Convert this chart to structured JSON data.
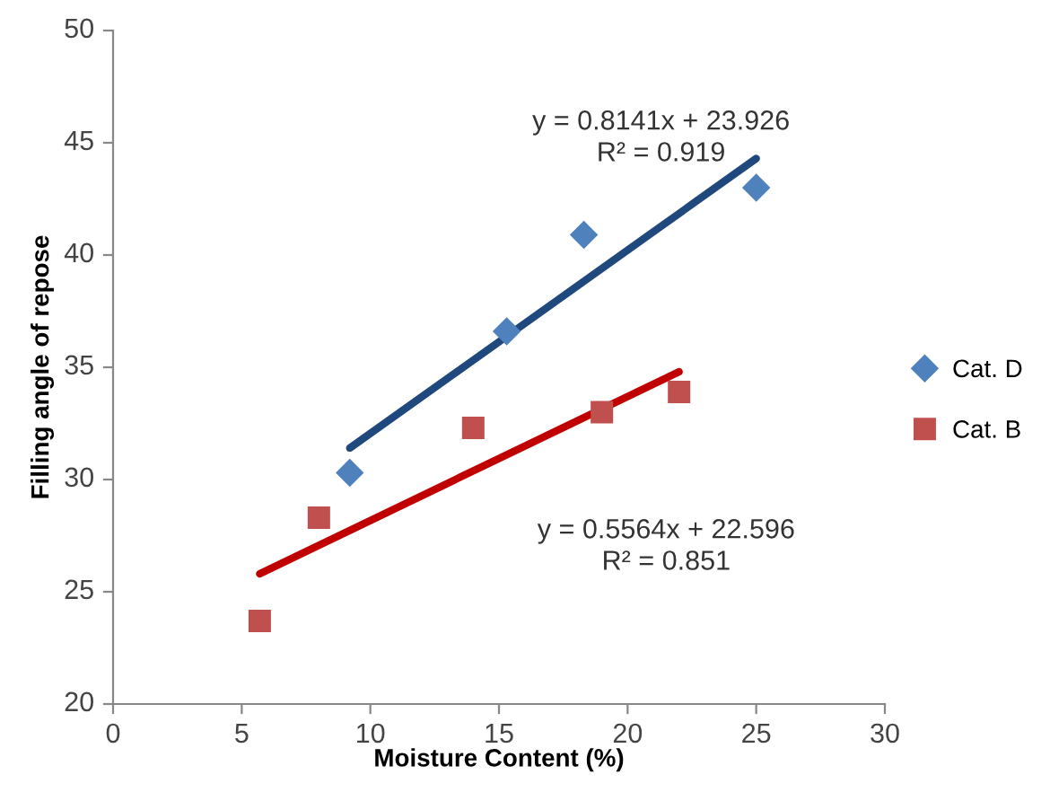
{
  "chart_data": {
    "type": "scatter",
    "xlabel": "Moisture Content (%)",
    "ylabel": "Filling angle of repose",
    "xlim": [
      0,
      30
    ],
    "xticks": [
      0,
      5,
      10,
      15,
      20,
      25,
      30
    ],
    "ylim": [
      20,
      50
    ],
    "yticks": [
      20,
      25,
      30,
      35,
      40,
      45,
      50
    ],
    "grid": false,
    "legend": "right",
    "series": [
      {
        "name": "Cat. D",
        "color": "#4f81bd",
        "marker": "diamond",
        "x": [
          9.2,
          15.3,
          18.3,
          25
        ],
        "values": [
          30.3,
          36.6,
          40.9,
          43.0
        ]
      },
      {
        "name": "Cat. B",
        "color": "#c0504d",
        "marker": "square",
        "x": [
          5.7,
          8,
          14,
          19,
          22
        ],
        "values": [
          23.7,
          28.3,
          32.3,
          33.0,
          33.9
        ]
      },
      {
        "type": "line",
        "color": "#1f497d",
        "marker": "none",
        "x": [
          9.2,
          25
        ],
        "values": [
          31.4,
          44.3
        ]
      },
      {
        "type": "line",
        "color": "#c00000",
        "marker": "none",
        "x": [
          5.7,
          22
        ],
        "values": [
          25.8,
          34.8
        ]
      }
    ],
    "annotations": [
      "y = 0.8141x + 23.926\nR² = 0.919",
      "y = 0.5564x + 22.596\nR² = 0.851"
    ]
  }
}
